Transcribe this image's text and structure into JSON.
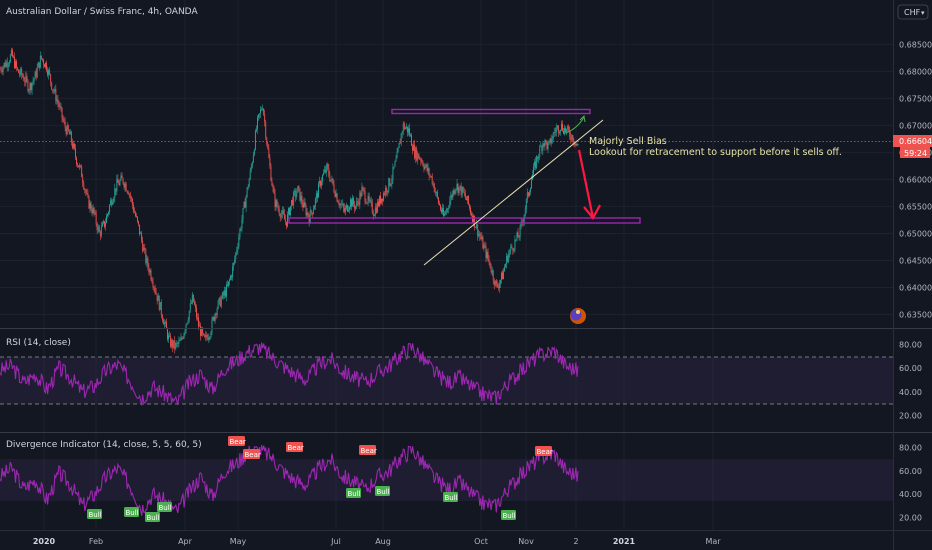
{
  "chart_title": "Australian Dollar / Swiss Franc, 4h, OANDA",
  "currency_badge": "CHF",
  "currency_caret": "▾",
  "colors": {
    "background": "#131722",
    "grid": "#1e222d",
    "up_candle": "#26a69a",
    "down_candle": "#ef5350",
    "price_badge": "#ef5350",
    "osc_line": "#9c27b0",
    "annotation_text": "#e8e6a8",
    "support_box": "#9c27b0",
    "arrow": "#ff1744",
    "trendline": "#e8dfb0",
    "bull_label": "#4caf50",
    "bear_label": "#ef5350"
  },
  "price_axis": {
    "ticks": [
      "0.68500",
      "0.68000",
      "0.67500",
      "0.67000",
      "0.66500",
      "0.66000",
      "0.65500",
      "0.65000",
      "0.64500",
      "0.64000",
      "0.63500"
    ],
    "last_price": "0.66604",
    "countdown": "59:24"
  },
  "annotation": {
    "line1": "Majorly Sell Bias",
    "line2": "Lookout for retracement to support before it sells off."
  },
  "rsi_pane": {
    "title": "RSI (14, close)",
    "ticks": [
      "80.00",
      "60.00",
      "40.00",
      "20.00"
    ]
  },
  "divergence_pane": {
    "title": "Divergence Indicator (14, close, 5, 5, 60, 5)",
    "ticks": [
      "80.00",
      "60.00",
      "40.00",
      "20.00"
    ],
    "bear_label": "Bear",
    "bull_label": "Bull"
  },
  "time_axis": {
    "labels": [
      "2020",
      "Feb",
      "Apr",
      "May",
      "Jul",
      "Aug",
      "Oct",
      "Nov",
      "2",
      "2021",
      "Mar"
    ]
  },
  "chart_data": {
    "type": "candlestick",
    "symbol": "AUDCHF",
    "interval": "4h",
    "source": "OANDA",
    "ylim": [
      0.6325,
      0.6895
    ],
    "time_labels": [
      "2020",
      "Feb",
      "Apr",
      "May",
      "Jul",
      "Aug",
      "Oct",
      "Nov",
      "2",
      "2021",
      "Mar"
    ],
    "price_path": [
      [
        0.6805,
        0.6815
      ],
      [
        0.683,
        0.68
      ],
      [
        0.679,
        0.677
      ],
      [
        0.679,
        0.6825
      ],
      [
        0.681,
        0.677
      ],
      [
        0.674,
        0.67
      ],
      [
        0.668,
        0.664
      ],
      [
        0.661,
        0.656
      ],
      [
        0.654,
        0.65
      ],
      [
        0.652,
        0.656
      ],
      [
        0.659,
        0.66
      ],
      [
        0.658,
        0.654
      ],
      [
        0.65,
        0.645
      ],
      [
        0.642,
        0.638
      ],
      [
        0.634,
        0.63
      ],
      [
        0.629,
        0.63
      ],
      [
        0.634,
        0.638
      ],
      [
        0.633,
        0.63
      ],
      [
        0.632,
        0.636
      ],
      [
        0.638,
        0.64
      ],
      [
        0.644,
        0.65
      ],
      [
        0.656,
        0.662
      ],
      [
        0.67,
        0.674
      ],
      [
        0.664,
        0.656
      ],
      [
        0.654,
        0.652
      ],
      [
        0.656,
        0.658
      ],
      [
        0.655,
        0.653
      ],
      [
        0.656,
        0.66
      ],
      [
        0.662,
        0.659
      ],
      [
        0.656,
        0.654
      ],
      [
        0.656,
        0.655
      ],
      [
        0.658,
        0.656
      ],
      [
        0.654,
        0.656
      ],
      [
        0.658,
        0.66
      ],
      [
        0.664,
        0.67
      ],
      [
        0.669,
        0.665
      ],
      [
        0.664,
        0.662
      ],
      [
        0.66,
        0.656
      ],
      [
        0.653,
        0.656
      ],
      [
        0.659,
        0.658
      ],
      [
        0.656,
        0.653
      ],
      [
        0.65,
        0.647
      ],
      [
        0.644,
        0.64
      ],
      [
        0.642,
        0.646
      ],
      [
        0.648,
        0.65
      ],
      [
        0.655,
        0.66
      ],
      [
        0.664,
        0.667
      ],
      [
        0.666,
        0.669
      ],
      [
        0.67,
        0.669
      ],
      [
        0.668,
        0.666
      ]
    ],
    "levels": {
      "resistance": 0.6708,
      "support_zone": [
        0.65,
        0.6513
      ],
      "trendline": [
        [
          0.645,
          "Sep"
        ],
        [
          0.67,
          "Nov-end"
        ]
      ]
    },
    "rsi": {
      "period": 14,
      "upper": 70,
      "lower": 30,
      "ylim": [
        12,
        88
      ],
      "values": [
        58,
        62,
        48,
        55,
        42,
        60,
        52,
        40,
        45,
        58,
        63,
        50,
        35,
        44,
        38,
        30,
        47,
        55,
        42,
        60,
        66,
        74,
        78,
        70,
        62,
        55,
        50,
        63,
        68,
        58,
        52,
        48,
        56,
        62,
        72,
        78,
        66,
        55,
        48,
        52,
        44,
        38,
        35,
        47,
        56,
        66,
        72,
        75,
        62,
        58
      ]
    },
    "divergence": {
      "ylim": [
        12,
        88
      ],
      "values": [
        55,
        62,
        45,
        52,
        35,
        58,
        48,
        30,
        40,
        55,
        62,
        48,
        28,
        40,
        34,
        25,
        42,
        55,
        38,
        60,
        66,
        76,
        78,
        72,
        60,
        52,
        48,
        62,
        70,
        56,
        50,
        44,
        55,
        60,
        72,
        78,
        65,
        52,
        44,
        50,
        40,
        32,
        30,
        44,
        55,
        65,
        72,
        75,
        60,
        56
      ]
    }
  }
}
